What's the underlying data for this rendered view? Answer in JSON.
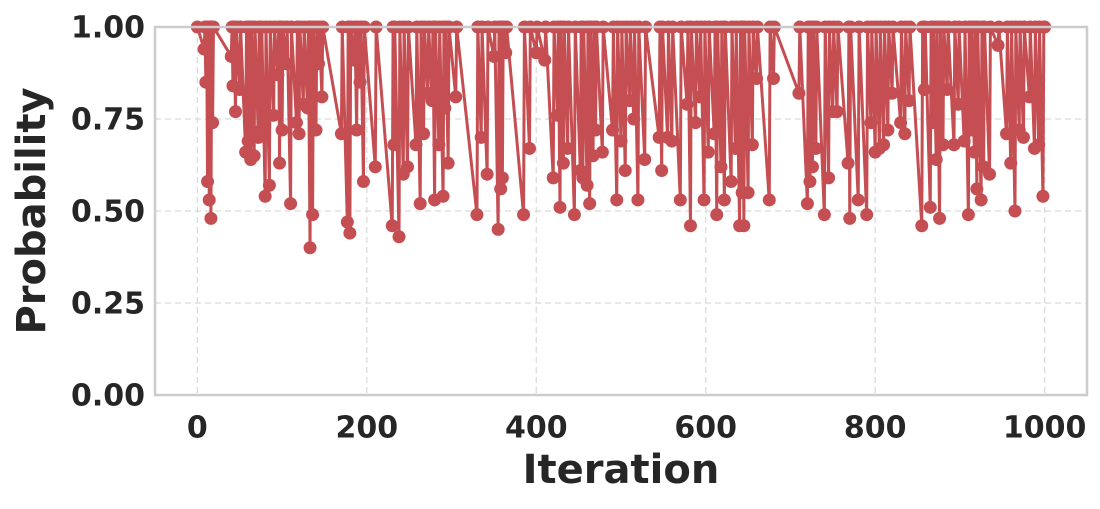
{
  "chart_data": {
    "type": "line",
    "x_label": "Iteration",
    "y_label": "Probability",
    "xlim": [
      -50,
      1050
    ],
    "ylim": [
      0,
      1
    ],
    "xticks": [
      0,
      200,
      400,
      600,
      800,
      1000
    ],
    "yticks": [
      {
        "value": 0,
        "label": "0.00"
      },
      {
        "value": 0.25,
        "label": "0.25"
      },
      {
        "value": 0.5,
        "label": "0.50"
      },
      {
        "value": 0.75,
        "label": "0.75"
      },
      {
        "value": 1,
        "label": "1.00"
      }
    ],
    "grid": true,
    "x": [
      0,
      8,
      9,
      10,
      11,
      12,
      13,
      14,
      15,
      16,
      17,
      18,
      19,
      40,
      41,
      42,
      43,
      45,
      46,
      50,
      51,
      57,
      58,
      60,
      61,
      63,
      64,
      67,
      68,
      72,
      73,
      75,
      76,
      80,
      81,
      85,
      86,
      90,
      91,
      95,
      96,
      97,
      98,
      100,
      101,
      105,
      106,
      110,
      111,
      117,
      118,
      120,
      121,
      125,
      126,
      130,
      131,
      133,
      134,
      136,
      137,
      140,
      141,
      143,
      144,
      147,
      148,
      170,
      171,
      177,
      178,
      180,
      181,
      185,
      186,
      188,
      189,
      192,
      193,
      196,
      197,
      210,
      211,
      230,
      231,
      232,
      233,
      238,
      239,
      243,
      244,
      248,
      249,
      258,
      259,
      263,
      264,
      267,
      268,
      272,
      273,
      277,
      278,
      280,
      281,
      285,
      286,
      290,
      291,
      292,
      293,
      296,
      297,
      305,
      306,
      330,
      331,
      335,
      336,
      342,
      343,
      350,
      351,
      355,
      356,
      358,
      359,
      360,
      361,
      364,
      365,
      385,
      386,
      392,
      393,
      400,
      401,
      410,
      411,
      420,
      421,
      425,
      426,
      428,
      429,
      432,
      433,
      437,
      438,
      445,
      446,
      452,
      453,
      455,
      456,
      460,
      461,
      463,
      464,
      467,
      468,
      470,
      471,
      478,
      479,
      490,
      491,
      495,
      496,
      500,
      501,
      505,
      506,
      510,
      511,
      515,
      516,
      520,
      521,
      528,
      529,
      545,
      546,
      548,
      549,
      555,
      556,
      560,
      561,
      570,
      571,
      578,
      579,
      582,
      583,
      588,
      589,
      593,
      594,
      598,
      599,
      603,
      604,
      610,
      611,
      613,
      614,
      618,
      619,
      622,
      623,
      630,
      631,
      635,
      636,
      640,
      641,
      643,
      644,
      645,
      646,
      650,
      651,
      655,
      656,
      660,
      661,
      675,
      676,
      680,
      681,
      710,
      711,
      720,
      721,
      723,
      724,
      726,
      727,
      730,
      731,
      740,
      741,
      745,
      746,
      750,
      751,
      755,
      756,
      768,
      769,
      770,
      771,
      780,
      781,
      790,
      791,
      795,
      796,
      800,
      801,
      805,
      806,
      810,
      811,
      815,
      816,
      820,
      821,
      830,
      831,
      835,
      836,
      840,
      841,
      855,
      856,
      858,
      859,
      865,
      866,
      868,
      869,
      872,
      873,
      876,
      877,
      880,
      881,
      885,
      886,
      893,
      894,
      898,
      899,
      905,
      906,
      910,
      911,
      913,
      914,
      917,
      918,
      920,
      921,
      925,
      926,
      928,
      929,
      935,
      936,
      945,
      946,
      955,
      956,
      960,
      961,
      965,
      966,
      970,
      971,
      975,
      976,
      982,
      983,
      988,
      989,
      993,
      994,
      998,
      999,
      1000
    ],
    "series": [
      {
        "color": "#c44e52",
        "values": [
          1,
          0.94,
          1,
          0.85,
          1,
          0.58,
          1,
          0.53,
          1,
          0.48,
          1,
          0.74,
          1,
          0.92,
          1,
          0.84,
          1,
          0.77,
          1,
          0.83,
          1,
          0.66,
          1,
          0.69,
          1,
          0.64,
          1,
          0.65,
          1,
          0.7,
          1,
          0.72,
          1,
          0.54,
          1,
          0.57,
          1,
          0.76,
          1,
          0.87,
          1,
          0.63,
          1,
          0.72,
          1,
          0.9,
          1,
          0.52,
          1,
          0.74,
          1,
          0.71,
          1,
          0.79,
          1,
          0.78,
          1,
          0.4,
          1,
          0.49,
          1,
          0.72,
          1,
          0.9,
          1,
          0.81,
          1,
          0.71,
          1,
          0.47,
          1,
          0.44,
          1,
          0.91,
          1,
          0.72,
          1,
          0.85,
          1,
          0.58,
          1,
          0.62,
          1,
          0.46,
          1,
          0.68,
          1,
          0.43,
          1,
          0.6,
          1,
          0.62,
          1,
          0.68,
          1,
          0.52,
          1,
          0.71,
          1,
          0.82,
          1,
          0.8,
          1,
          0.53,
          1,
          0.68,
          1,
          0.54,
          1,
          0.78,
          1,
          0.63,
          1,
          0.81,
          1,
          0.49,
          1,
          0.7,
          1,
          0.6,
          1,
          0.92,
          1,
          0.45,
          1,
          0.56,
          1,
          0.59,
          1,
          0.93,
          1,
          0.49,
          1,
          0.67,
          1,
          0.93,
          1,
          0.91,
          1,
          0.59,
          1,
          0.76,
          1,
          0.51,
          1,
          0.63,
          1,
          0.67,
          1,
          0.49,
          1,
          0.61,
          1,
          0.59,
          1,
          0.57,
          1,
          0.52,
          1,
          0.65,
          1,
          0.72,
          1,
          0.66,
          1,
          0.72,
          1,
          0.53,
          1,
          0.69,
          1,
          0.61,
          1,
          0.8,
          1,
          0.75,
          1,
          0.53,
          1,
          0.64,
          1,
          0.7,
          1,
          0.61,
          1,
          0.7,
          1,
          0.69,
          1,
          0.53,
          1,
          0.79,
          1,
          0.46,
          1,
          0.74,
          1,
          0.81,
          1,
          0.53,
          1,
          0.66,
          1,
          0.71,
          1,
          0.49,
          1,
          0.62,
          1,
          0.53,
          1,
          0.58,
          1,
          0.67,
          1,
          0.46,
          1,
          0.55,
          1,
          0.46,
          1,
          0.55,
          1,
          0.68,
          1,
          0.86,
          1,
          0.53,
          1,
          0.86,
          1,
          0.82,
          1,
          0.52,
          1,
          0.58,
          1,
          0.62,
          1,
          0.67,
          1,
          0.49,
          1,
          0.59,
          1,
          0.77,
          1,
          0.77,
          1,
          0.63,
          1,
          0.48,
          1,
          0.53,
          1,
          0.49,
          1,
          0.74,
          1,
          0.66,
          1,
          0.67,
          1,
          0.68,
          1,
          0.72,
          1,
          0.82,
          1,
          0.74,
          1,
          0.71,
          1,
          0.8,
          1,
          0.46,
          1,
          0.83,
          1,
          0.51,
          1,
          0.74,
          1,
          0.64,
          1,
          0.48,
          1,
          0.68,
          1,
          0.83,
          1,
          0.68,
          1,
          0.79,
          1,
          0.69,
          1,
          0.49,
          1,
          0.72,
          1,
          0.66,
          1,
          0.56,
          1,
          0.53,
          1,
          0.62,
          1,
          0.6,
          1,
          0.95,
          1,
          0.71,
          1,
          0.63,
          1,
          0.5,
          1,
          0.72,
          1,
          0.7,
          1,
          0.81,
          1,
          0.67,
          1,
          0.68,
          1,
          0.54,
          1,
          1
        ]
      }
    ]
  }
}
